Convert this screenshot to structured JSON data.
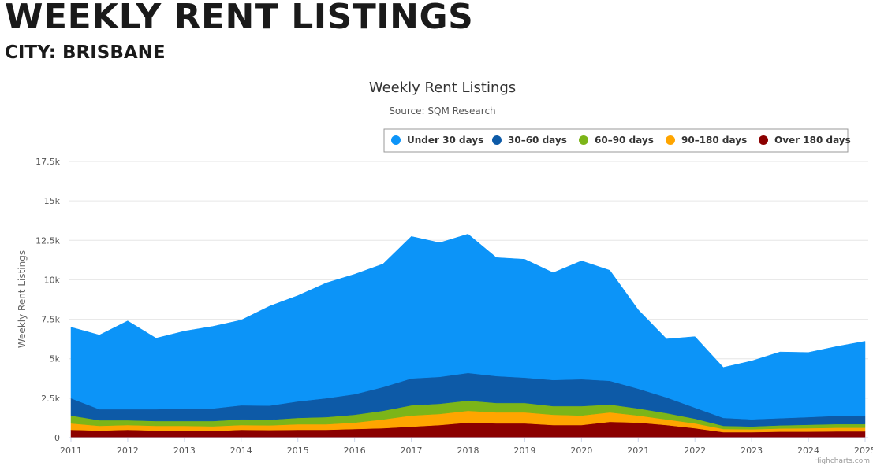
{
  "header": {
    "title": "WEEKLY RENT LISTINGS",
    "subtitle": "CITY: BRISBANE"
  },
  "chart_data": {
    "type": "area",
    "stacked": true,
    "title": "Weekly Rent Listings",
    "subtitle": "Source: SQM Research",
    "xlabel": "",
    "ylabel": "Weekly Rent Listings",
    "credit": "Highcharts.com",
    "legend_position": "top-right",
    "grid": true,
    "ylim": [
      0,
      17500
    ],
    "y_ticks": [
      0,
      2500,
      5000,
      7500,
      10000,
      12500,
      15000,
      17500
    ],
    "y_tick_labels": [
      "0",
      "2.5k",
      "5k",
      "7.5k",
      "10k",
      "12.5k",
      "15k",
      "17.5k"
    ],
    "x_ticks": [
      "2011",
      "2012",
      "2013",
      "2014",
      "2015",
      "2016",
      "2017",
      "2018",
      "2019",
      "2020",
      "2021",
      "2022",
      "2023",
      "2024",
      "2025"
    ],
    "x": [
      "2011",
      "2011.5",
      "2012",
      "2012.5",
      "2013",
      "2013.5",
      "2014",
      "2014.5",
      "2015",
      "2015.5",
      "2016",
      "2016.5",
      "2017",
      "2017.5",
      "2018",
      "2018.5",
      "2019",
      "2019.5",
      "2020",
      "2020.5",
      "2021",
      "2021.5",
      "2022",
      "2022.5",
      "2023",
      "2023.5",
      "2024",
      "2024.5",
      "2025"
    ],
    "series": [
      {
        "name": "Over 180 days",
        "color": "#8b0000",
        "values": [
          500,
          450,
          500,
          450,
          450,
          420,
          500,
          480,
          500,
          500,
          550,
          600,
          700,
          800,
          950,
          900,
          900,
          800,
          800,
          1000,
          950,
          800,
          600,
          350,
          350,
          380,
          380,
          400,
          400
        ]
      },
      {
        "name": "90-180 days",
        "color": "#ffa500",
        "values": [
          400,
          300,
          300,
          300,
          300,
          300,
          300,
          300,
          350,
          350,
          400,
          550,
          700,
          700,
          750,
          700,
          700,
          650,
          600,
          600,
          450,
          350,
          300,
          200,
          180,
          200,
          220,
          230,
          230
        ]
      },
      {
        "name": "60-90 days",
        "color": "#7cb518",
        "values": [
          500,
          350,
          300,
          300,
          300,
          330,
          350,
          350,
          400,
          450,
          500,
          550,
          650,
          650,
          650,
          600,
          600,
          550,
          600,
          500,
          450,
          400,
          300,
          200,
          180,
          200,
          220,
          230,
          230
        ]
      },
      {
        "name": "30-60 days",
        "color": "#0d5aa7",
        "values": [
          1100,
          700,
          700,
          750,
          800,
          800,
          900,
          900,
          1050,
          1200,
          1300,
          1500,
          1700,
          1700,
          1750,
          1700,
          1600,
          1650,
          1700,
          1500,
          1250,
          1000,
          700,
          500,
          450,
          450,
          480,
          520,
          550
        ]
      },
      {
        "name": "Under 30 days",
        "color": "#0c94f8",
        "values": [
          4500,
          4700,
          5600,
          4500,
          4900,
          5200,
          5400,
          6300,
          6700,
          7300,
          7600,
          7800,
          9000,
          8500,
          8800,
          7500,
          7500,
          6800,
          7500,
          7000,
          5000,
          3700,
          4500,
          3200,
          3700,
          4200,
          4100,
          4400,
          4700
        ]
      }
    ],
    "legend_order": [
      "Under 30 days",
      "30-60 days",
      "60-90 days",
      "90-180 days",
      "Over 180 days"
    ],
    "legend_labels": [
      "Under 30 days",
      "30–60 days",
      "60–90 days",
      "90–180 days",
      "Over 180 days"
    ]
  }
}
